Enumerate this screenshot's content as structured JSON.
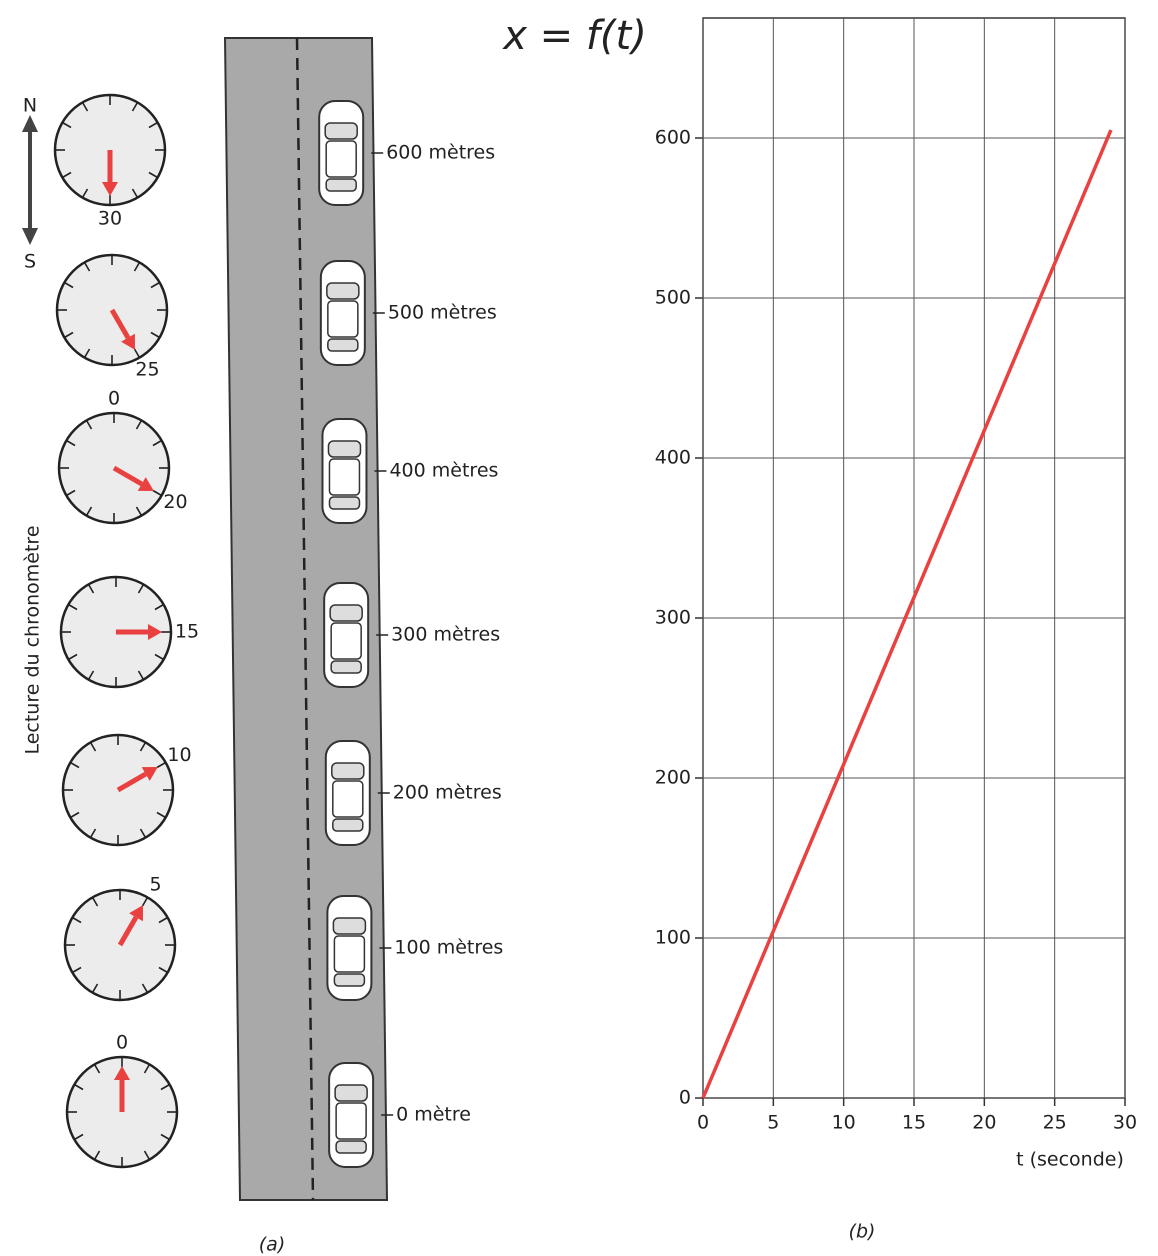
{
  "diagram": {
    "compass": {
      "north": "N",
      "south": "S"
    },
    "axis_label": "Lecture du chronomètre",
    "dials": [
      {
        "reading": 30
      },
      {
        "reading": 25
      },
      {
        "reading": 20,
        "top_label": "0"
      },
      {
        "reading": 15
      },
      {
        "reading": 10
      },
      {
        "reading": 5
      },
      {
        "reading": 0
      }
    ],
    "positions": [
      "600 mètres",
      "500 mètres",
      "400 mètres",
      "300 mètres",
      "200 mètres",
      "100 mètres",
      "0 mètre"
    ],
    "caption": "(a)"
  },
  "chart_data": {
    "type": "line",
    "title": "x = f(t)",
    "x_label": "t (seconde)",
    "caption": "(b)",
    "x": [
      0,
      29
    ],
    "values": [
      0,
      605
    ],
    "color": "#e8413f",
    "xlim": [
      0,
      30
    ],
    "ylim": [
      0,
      675
    ],
    "xticks": [
      0,
      5,
      10,
      15,
      20,
      25,
      30
    ],
    "yticks": [
      0,
      100,
      200,
      300,
      400,
      500,
      600
    ],
    "grid": true
  }
}
